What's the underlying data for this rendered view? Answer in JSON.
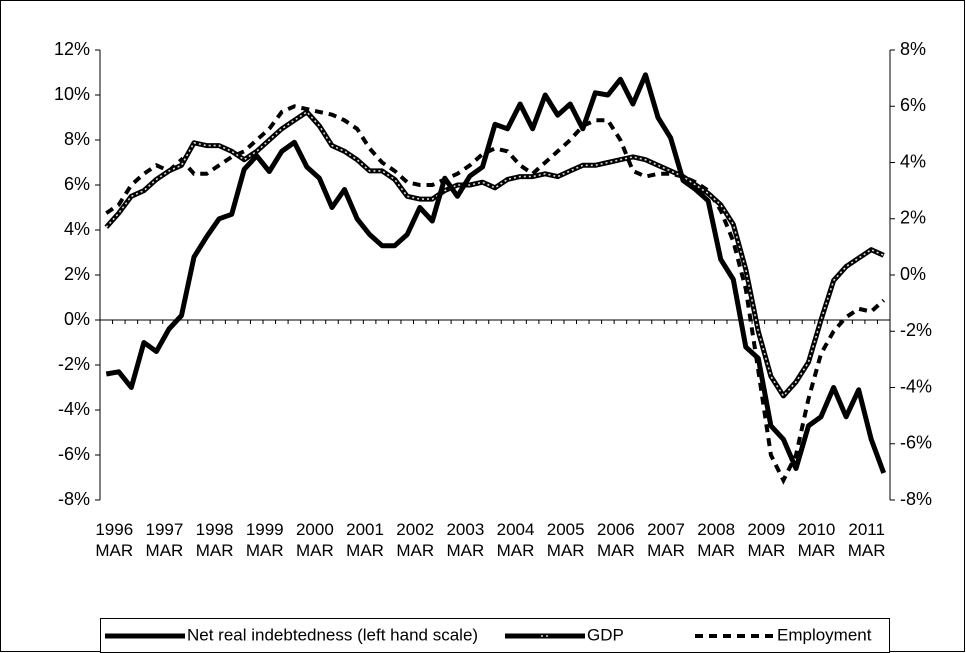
{
  "chart_data": {
    "type": "line",
    "categories": [
      "1996 MAR",
      null,
      null,
      null,
      "1997 MAR",
      null,
      null,
      null,
      "1998 MAR",
      null,
      null,
      null,
      "1999 MAR",
      null,
      null,
      null,
      "2000 MAR",
      null,
      null,
      null,
      "2001 MAR",
      null,
      null,
      null,
      "2002 MAR",
      null,
      null,
      null,
      "2003 MAR",
      null,
      null,
      null,
      "2004 MAR",
      null,
      null,
      null,
      "2005 MAR",
      null,
      null,
      null,
      "2006 MAR",
      null,
      null,
      null,
      "2007 MAR",
      null,
      null,
      null,
      "2008 MAR",
      null,
      null,
      null,
      "2009 MAR",
      null,
      null,
      null,
      "2010 MAR",
      null,
      null,
      null,
      "2011 MAR",
      null,
      null
    ],
    "series": [
      {
        "name": "Net real indebtedness (left hand scale)",
        "color": "#000000",
        "line_style": "solid",
        "axis": "y",
        "values": [
          -2.4,
          -2.3,
          -3.0,
          -1.0,
          -1.4,
          -0.4,
          0.2,
          2.8,
          3.7,
          4.5,
          4.7,
          6.7,
          7.3,
          6.6,
          7.5,
          7.9,
          6.8,
          6.3,
          5.0,
          5.8,
          4.5,
          3.8,
          3.3,
          3.3,
          3.8,
          5.0,
          4.4,
          6.3,
          5.5,
          6.4,
          6.8,
          8.7,
          8.5,
          9.6,
          8.5,
          10.0,
          9.1,
          9.6,
          8.5,
          10.1,
          10.0,
          10.7,
          9.6,
          10.9,
          9.0,
          8.1,
          6.2,
          5.8,
          5.3,
          2.7,
          1.8,
          -1.2,
          -1.7,
          -4.7,
          -5.3,
          -6.6,
          -4.7,
          -4.3,
          -3.0,
          -4.3,
          -3.1,
          -5.3,
          -6.8
        ]
      },
      {
        "name": "GDP",
        "color": "#000000",
        "line_style": "double",
        "axis": "y2",
        "values": [
          1.7,
          2.2,
          2.8,
          3.0,
          3.4,
          3.7,
          3.9,
          4.7,
          4.6,
          4.6,
          4.4,
          4.1,
          4.4,
          4.8,
          5.2,
          5.5,
          5.8,
          5.3,
          4.6,
          4.4,
          4.1,
          3.7,
          3.7,
          3.4,
          2.8,
          2.7,
          2.7,
          3.0,
          3.2,
          3.2,
          3.3,
          3.1,
          3.4,
          3.5,
          3.5,
          3.6,
          3.5,
          3.7,
          3.9,
          3.9,
          4.0,
          4.1,
          4.2,
          4.1,
          3.9,
          3.7,
          3.5,
          3.2,
          2.9,
          2.5,
          1.8,
          0.2,
          -2.0,
          -3.6,
          -4.3,
          -3.8,
          -3.1,
          -1.6,
          -0.2,
          0.3,
          0.6,
          0.9,
          0.7
        ]
      },
      {
        "name": "Employment",
        "color": "#000000",
        "line_style": "dashed",
        "axis": "y2",
        "values": [
          2.2,
          2.5,
          3.2,
          3.6,
          3.9,
          3.7,
          4.1,
          3.6,
          3.6,
          3.9,
          4.2,
          4.4,
          4.8,
          5.2,
          5.8,
          6.0,
          5.9,
          5.8,
          5.7,
          5.5,
          5.2,
          4.5,
          4.0,
          3.7,
          3.3,
          3.2,
          3.2,
          3.4,
          3.6,
          3.9,
          4.3,
          4.5,
          4.4,
          3.9,
          3.6,
          4.0,
          4.4,
          4.8,
          5.3,
          5.5,
          5.5,
          4.8,
          3.7,
          3.5,
          3.6,
          3.6,
          3.5,
          3.3,
          3.0,
          2.3,
          1.2,
          -0.5,
          -3.4,
          -6.4,
          -7.3,
          -6.4,
          -4.4,
          -2.8,
          -2.0,
          -1.5,
          -1.2,
          -1.3,
          -0.9
        ]
      }
    ],
    "ylim": [
      -8,
      12
    ],
    "yticks": [
      {
        "value": -8,
        "label": "-8%"
      },
      {
        "value": -6,
        "label": "-6%"
      },
      {
        "value": -4,
        "label": "-4%"
      },
      {
        "value": -2,
        "label": "-2%"
      },
      {
        "value": 0,
        "label": "0%"
      },
      {
        "value": 2,
        "label": "2%"
      },
      {
        "value": 4,
        "label": "4%"
      },
      {
        "value": 6,
        "label": "6%"
      },
      {
        "value": 8,
        "label": "8%"
      },
      {
        "value": 10,
        "label": "10%"
      },
      {
        "value": 12,
        "label": "12%"
      }
    ],
    "y2lim": [
      -8,
      8
    ],
    "y2ticks": [
      {
        "value": -8,
        "label": "-8%"
      },
      {
        "value": -6,
        "label": "-6%"
      },
      {
        "value": -4,
        "label": "-4%"
      },
      {
        "value": -2,
        "label": "-2%"
      },
      {
        "value": 0,
        "label": "0%"
      },
      {
        "value": 2,
        "label": "2%"
      },
      {
        "value": 4,
        "label": "4%"
      },
      {
        "value": 6,
        "label": "6%"
      },
      {
        "value": 8,
        "label": "8%"
      }
    ],
    "legend": "bottom"
  }
}
